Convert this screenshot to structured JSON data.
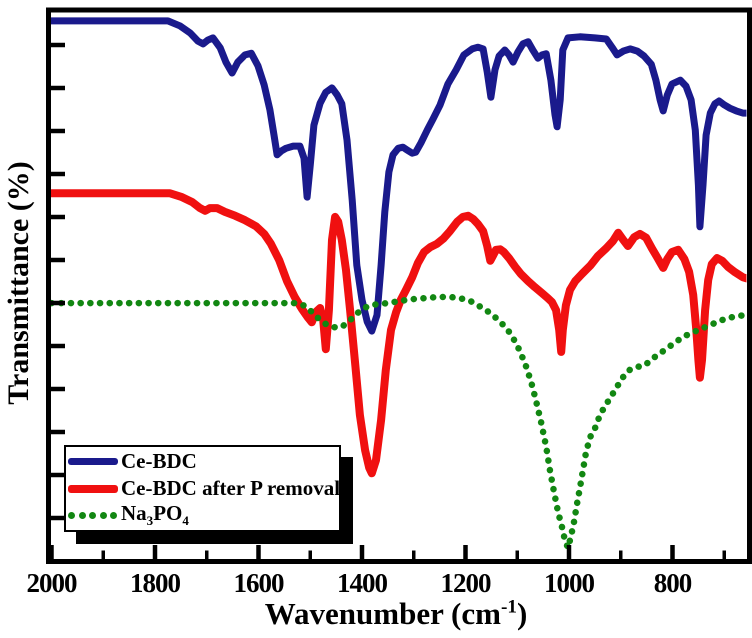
{
  "figure": {
    "x_axis_title": {
      "prefix": "Wavenumber (cm",
      "superscript": "-1",
      "suffix": ")"
    },
    "y_axis_title": "Transmittance (%)",
    "x_tick_labels": [
      "2000",
      "1800",
      "1600",
      "1400",
      "1200",
      "1000",
      "800"
    ]
  },
  "legend": {
    "items": [
      {
        "label": "Ce-BDC",
        "color": "#1a1a8c",
        "style": "solid"
      },
      {
        "label": "Ce-BDC after P removal",
        "color": "#f01010",
        "style": "solid"
      },
      {
        "label_parts": {
          "p0": "Na",
          "s0": "3",
          "p1": "PO",
          "s1": "4"
        },
        "color": "#128712",
        "style": "dotted"
      }
    ]
  },
  "chart_data": {
    "type": "line",
    "title": "",
    "xlabel": "Wavenumber (cm-1)",
    "ylabel": "Transmittance (%)",
    "xlim": [
      2000,
      650
    ],
    "x_axis_reversed": true,
    "ylim": [
      0,
      100
    ],
    "y_ticks_labeled": false,
    "grid": false,
    "legend_position": "lower left",
    "x_ticks_major": [
      2000,
      1800,
      1600,
      1400,
      1200,
      1000,
      800
    ],
    "x_ticks_minor": [
      1900,
      1700,
      1500,
      1300,
      1100,
      900,
      700
    ],
    "series": [
      {
        "name": "Ce-BDC",
        "color": "#1a1a8c",
        "line_style": "solid",
        "stroke_px": 7,
        "points": [
          [
            2000,
            98.2
          ],
          [
            1775,
            98.2
          ],
          [
            1752,
            97.3
          ],
          [
            1732,
            96.0
          ],
          [
            1717,
            94.5
          ],
          [
            1707,
            94.0
          ],
          [
            1698,
            94.7
          ],
          [
            1688,
            95.1
          ],
          [
            1674,
            93.3
          ],
          [
            1663,
            90.7
          ],
          [
            1651,
            88.7
          ],
          [
            1640,
            90.7
          ],
          [
            1626,
            92.0
          ],
          [
            1614,
            92.3
          ],
          [
            1601,
            90.0
          ],
          [
            1589,
            86.5
          ],
          [
            1578,
            82.0
          ],
          [
            1570,
            77.4
          ],
          [
            1564,
            73.8
          ],
          [
            1556,
            74.5
          ],
          [
            1547,
            75.0
          ],
          [
            1533,
            75.4
          ],
          [
            1520,
            75.4
          ],
          [
            1512,
            73.2
          ],
          [
            1506,
            66.1
          ],
          [
            1500,
            72.0
          ],
          [
            1493,
            79.2
          ],
          [
            1481,
            83.2
          ],
          [
            1470,
            85.2
          ],
          [
            1458,
            86.0
          ],
          [
            1448,
            84.7
          ],
          [
            1439,
            83.1
          ],
          [
            1429,
            76.5
          ],
          [
            1419,
            65.6
          ],
          [
            1410,
            53.7
          ],
          [
            1400,
            47.4
          ],
          [
            1390,
            43.4
          ],
          [
            1381,
            41.7
          ],
          [
            1371,
            44.6
          ],
          [
            1363,
            53.7
          ],
          [
            1356,
            63.4
          ],
          [
            1348,
            70.7
          ],
          [
            1340,
            73.8
          ],
          [
            1330,
            75.0
          ],
          [
            1321,
            75.2
          ],
          [
            1313,
            74.7
          ],
          [
            1303,
            74.1
          ],
          [
            1296,
            74.3
          ],
          [
            1286,
            76.0
          ],
          [
            1274,
            78.3
          ],
          [
            1263,
            80.3
          ],
          [
            1249,
            82.9
          ],
          [
            1234,
            86.7
          ],
          [
            1218,
            89.3
          ],
          [
            1203,
            92.0
          ],
          [
            1187,
            93.1
          ],
          [
            1176,
            93.4
          ],
          [
            1166,
            93.1
          ],
          [
            1158,
            88.9
          ],
          [
            1151,
            84.3
          ],
          [
            1143,
            89.3
          ],
          [
            1135,
            91.8
          ],
          [
            1124,
            92.9
          ],
          [
            1116,
            92.0
          ],
          [
            1108,
            90.7
          ],
          [
            1099,
            92.5
          ],
          [
            1089,
            94.0
          ],
          [
            1079,
            94.4
          ],
          [
            1070,
            92.9
          ],
          [
            1060,
            91.4
          ],
          [
            1052,
            92.0
          ],
          [
            1044,
            92.2
          ],
          [
            1035,
            87.4
          ],
          [
            1027,
            81.1
          ],
          [
            1023,
            78.9
          ],
          [
            1017,
            83.8
          ],
          [
            1012,
            92.9
          ],
          [
            1002,
            95.1
          ],
          [
            979,
            95.3
          ],
          [
            950,
            95.1
          ],
          [
            928,
            94.9
          ],
          [
            917,
            93.4
          ],
          [
            907,
            92.0
          ],
          [
            895,
            92.7
          ],
          [
            882,
            93.1
          ],
          [
            868,
            92.7
          ],
          [
            855,
            91.8
          ],
          [
            841,
            90.3
          ],
          [
            832,
            87.4
          ],
          [
            824,
            83.8
          ],
          [
            818,
            81.8
          ],
          [
            810,
            84.7
          ],
          [
            801,
            86.7
          ],
          [
            785,
            87.4
          ],
          [
            774,
            86.3
          ],
          [
            764,
            83.8
          ],
          [
            756,
            78.3
          ],
          [
            750,
            68.3
          ],
          [
            747,
            60.7
          ],
          [
            741,
            68.3
          ],
          [
            735,
            77.4
          ],
          [
            727,
            81.4
          ],
          [
            718,
            83.1
          ],
          [
            710,
            83.6
          ],
          [
            700,
            82.9
          ],
          [
            689,
            82.3
          ],
          [
            677,
            81.8
          ],
          [
            664,
            81.4
          ],
          [
            646,
            81.4
          ]
        ]
      },
      {
        "name": "Ce-BDC after P removal",
        "color": "#f01010",
        "line_style": "solid",
        "stroke_px": 8,
        "points": [
          [
            2000,
            66.8
          ],
          [
            1771,
            66.8
          ],
          [
            1748,
            66.1
          ],
          [
            1728,
            65.2
          ],
          [
            1713,
            64.1
          ],
          [
            1703,
            63.6
          ],
          [
            1694,
            64.1
          ],
          [
            1680,
            64.1
          ],
          [
            1665,
            63.4
          ],
          [
            1645,
            62.7
          ],
          [
            1626,
            61.9
          ],
          [
            1605,
            60.8
          ],
          [
            1589,
            59.4
          ],
          [
            1576,
            57.6
          ],
          [
            1560,
            54.6
          ],
          [
            1545,
            50.8
          ],
          [
            1530,
            47.9
          ],
          [
            1516,
            45.7
          ],
          [
            1504,
            44.1
          ],
          [
            1497,
            43.3
          ],
          [
            1489,
            45.2
          ],
          [
            1481,
            45.9
          ],
          [
            1475,
            43.7
          ],
          [
            1470,
            38.4
          ],
          [
            1464,
            45.5
          ],
          [
            1458,
            58.3
          ],
          [
            1452,
            62.5
          ],
          [
            1446,
            61.6
          ],
          [
            1439,
            58.3
          ],
          [
            1431,
            52.8
          ],
          [
            1423,
            45.5
          ],
          [
            1413,
            35.5
          ],
          [
            1404,
            26.4
          ],
          [
            1394,
            20.0
          ],
          [
            1386,
            16.8
          ],
          [
            1381,
            15.8
          ],
          [
            1373,
            18.2
          ],
          [
            1363,
            25.5
          ],
          [
            1354,
            34.6
          ],
          [
            1344,
            41.9
          ],
          [
            1334,
            45.2
          ],
          [
            1325,
            47.4
          ],
          [
            1315,
            49.2
          ],
          [
            1303,
            51.5
          ],
          [
            1292,
            54.1
          ],
          [
            1280,
            56.1
          ],
          [
            1268,
            57.0
          ],
          [
            1255,
            57.6
          ],
          [
            1243,
            58.5
          ],
          [
            1230,
            59.9
          ],
          [
            1216,
            61.6
          ],
          [
            1205,
            62.5
          ],
          [
            1195,
            62.7
          ],
          [
            1185,
            62.1
          ],
          [
            1176,
            61.2
          ],
          [
            1166,
            59.9
          ],
          [
            1158,
            57.2
          ],
          [
            1152,
            54.5
          ],
          [
            1147,
            55.4
          ],
          [
            1141,
            56.5
          ],
          [
            1133,
            56.6
          ],
          [
            1126,
            56.1
          ],
          [
            1116,
            55.0
          ],
          [
            1104,
            53.4
          ],
          [
            1093,
            52.1
          ],
          [
            1079,
            50.8
          ],
          [
            1066,
            49.7
          ],
          [
            1052,
            48.6
          ],
          [
            1041,
            47.7
          ],
          [
            1033,
            47.0
          ],
          [
            1025,
            45.5
          ],
          [
            1019,
            41.9
          ],
          [
            1015,
            37.9
          ],
          [
            1012,
            41.9
          ],
          [
            1006,
            46.4
          ],
          [
            998,
            49.2
          ],
          [
            988,
            50.8
          ],
          [
            975,
            52.1
          ],
          [
            959,
            53.6
          ],
          [
            944,
            55.4
          ],
          [
            928,
            56.8
          ],
          [
            915,
            58.1
          ],
          [
            905,
            59.6
          ],
          [
            895,
            58.3
          ],
          [
            886,
            57.2
          ],
          [
            874,
            58.8
          ],
          [
            863,
            59.4
          ],
          [
            851,
            58.7
          ],
          [
            840,
            56.8
          ],
          [
            830,
            55.2
          ],
          [
            818,
            53.2
          ],
          [
            810,
            54.8
          ],
          [
            801,
            56.1
          ],
          [
            789,
            56.5
          ],
          [
            777,
            54.8
          ],
          [
            768,
            52.5
          ],
          [
            760,
            48.3
          ],
          [
            754,
            41.9
          ],
          [
            750,
            36.4
          ],
          [
            747,
            33.2
          ],
          [
            743,
            36.4
          ],
          [
            737,
            45.5
          ],
          [
            731,
            51.0
          ],
          [
            724,
            53.9
          ],
          [
            714,
            55.0
          ],
          [
            704,
            54.5
          ],
          [
            693,
            53.4
          ],
          [
            679,
            52.4
          ],
          [
            664,
            51.5
          ],
          [
            646,
            51.0
          ]
        ]
      },
      {
        "name": "Na3PO4",
        "color": "#128712",
        "line_style": "dotted",
        "stroke_px": 6.5,
        "points": [
          [
            2000,
            46.8
          ],
          [
            1529,
            46.8
          ],
          [
            1510,
            46.3
          ],
          [
            1495,
            45.0
          ],
          [
            1481,
            43.7
          ],
          [
            1467,
            42.8
          ],
          [
            1454,
            42.4
          ],
          [
            1440,
            42.4
          ],
          [
            1427,
            43.3
          ],
          [
            1413,
            44.6
          ],
          [
            1400,
            45.7
          ],
          [
            1386,
            46.3
          ],
          [
            1371,
            46.6
          ],
          [
            1350,
            46.8
          ],
          [
            1326,
            47.2
          ],
          [
            1303,
            47.5
          ],
          [
            1278,
            47.7
          ],
          [
            1253,
            47.9
          ],
          [
            1230,
            47.9
          ],
          [
            1211,
            47.7
          ],
          [
            1191,
            47.2
          ],
          [
            1176,
            46.4
          ],
          [
            1160,
            45.5
          ],
          [
            1145,
            44.4
          ],
          [
            1131,
            43.2
          ],
          [
            1118,
            41.9
          ],
          [
            1106,
            40.1
          ],
          [
            1095,
            38.1
          ],
          [
            1083,
            35.3
          ],
          [
            1073,
            32.4
          ],
          [
            1064,
            29.1
          ],
          [
            1054,
            25.1
          ],
          [
            1044,
            20.6
          ],
          [
            1037,
            16.4
          ],
          [
            1029,
            12.4
          ],
          [
            1021,
            8.7
          ],
          [
            1013,
            5.8
          ],
          [
            1008,
            3.6
          ],
          [
            1002,
            2.2
          ],
          [
            996,
            4.4
          ],
          [
            990,
            7.1
          ],
          [
            985,
            10.0
          ],
          [
            979,
            13.1
          ],
          [
            973,
            16.4
          ],
          [
            967,
            19.7
          ],
          [
            959,
            22.4
          ],
          [
            951,
            23.7
          ],
          [
            944,
            25.5
          ],
          [
            936,
            27.1
          ],
          [
            928,
            28.4
          ],
          [
            919,
            29.7
          ],
          [
            909,
            31.3
          ],
          [
            899,
            32.8
          ],
          [
            890,
            34.1
          ],
          [
            880,
            34.8
          ],
          [
            868,
            35.2
          ],
          [
            857,
            35.3
          ],
          [
            845,
            36.1
          ],
          [
            834,
            37.0
          ],
          [
            820,
            37.9
          ],
          [
            807,
            38.8
          ],
          [
            791,
            39.9
          ],
          [
            776,
            40.8
          ],
          [
            760,
            41.5
          ],
          [
            745,
            42.1
          ],
          [
            727,
            42.8
          ],
          [
            710,
            43.5
          ],
          [
            693,
            44.1
          ],
          [
            673,
            44.4
          ],
          [
            650,
            44.8
          ]
        ]
      }
    ]
  }
}
